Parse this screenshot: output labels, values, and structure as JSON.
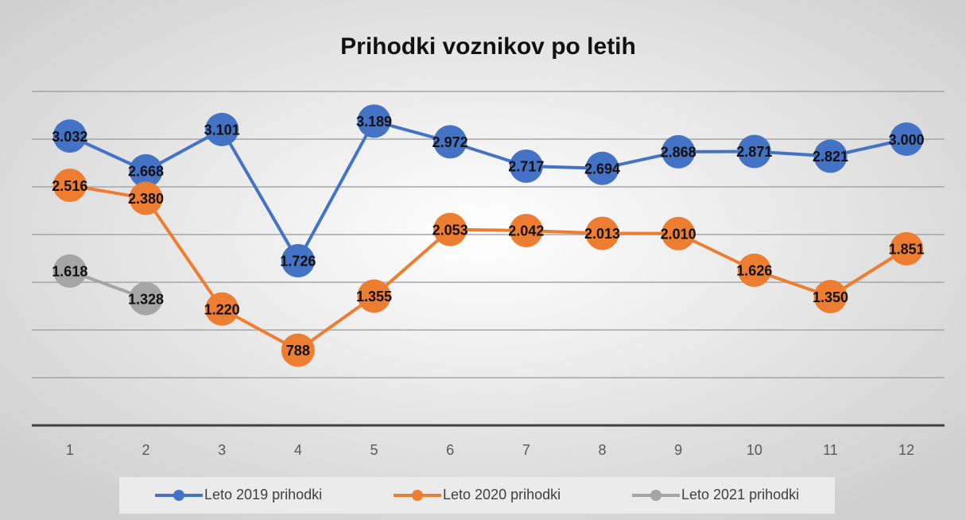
{
  "chart_data": {
    "type": "line",
    "title": "Prihodki voznikov po letih",
    "categories": [
      "1",
      "2",
      "3",
      "4",
      "5",
      "6",
      "7",
      "8",
      "9",
      "10",
      "11",
      "12"
    ],
    "series": [
      {
        "name": "Leto 2019 prihodki",
        "color": "#4472c4",
        "values": [
          3032,
          2668,
          3101,
          1726,
          3189,
          2972,
          2717,
          2694,
          2868,
          2871,
          2821,
          3000
        ],
        "value_labels": [
          "3.032",
          "2.668",
          "3.101",
          "1.726",
          "3.189",
          "2.972",
          "2.717",
          "2.694",
          "2.868",
          "2.871",
          "2.821",
          "3.000"
        ]
      },
      {
        "name": "Leto 2020 prihodki",
        "color": "#ed7d31",
        "values": [
          2516,
          2380,
          1220,
          788,
          1355,
          2053,
          2042,
          2013,
          2010,
          1626,
          1350,
          1851
        ],
        "value_labels": [
          "2.516",
          "2.380",
          "1.220",
          "788",
          "1.355",
          "2.053",
          "2.042",
          "2.013",
          "2.010",
          "1.626",
          "1.350",
          "1.851"
        ]
      },
      {
        "name": "Leto 2021 prihodki",
        "color": "#a5a5a5",
        "values": [
          1618,
          1328,
          null,
          null,
          null,
          null,
          null,
          null,
          null,
          null,
          null,
          null
        ],
        "value_labels": [
          "1.618",
          "1.328",
          null,
          null,
          null,
          null,
          null,
          null,
          null,
          null,
          null,
          null
        ]
      }
    ],
    "ylim": [
      0,
      3500
    ],
    "yticks": [
      0,
      500,
      1000,
      1500,
      2000,
      2500,
      3000,
      3500
    ],
    "grid": true,
    "legend": "bottom"
  }
}
